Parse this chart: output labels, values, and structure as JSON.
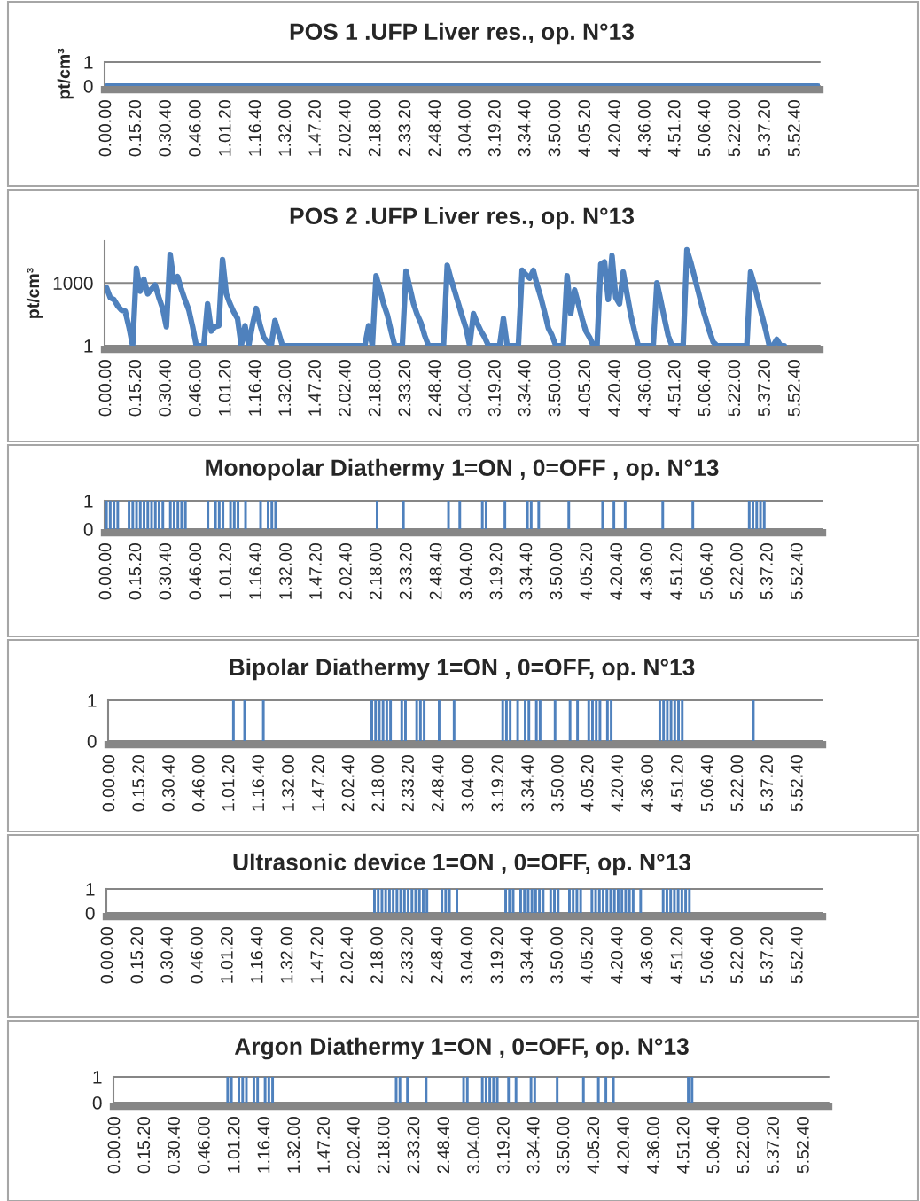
{
  "chart_data": [
    {
      "type": "line",
      "title": "POS 1 .UFP Liver res., op. N°13",
      "ylabel": "pt/cm³",
      "ylim": [
        0,
        1
      ],
      "yticks": [
        0,
        1
      ],
      "grid": "y",
      "categories": [
        "0.00.00",
        null,
        null,
        null,
        null,
        null,
        null,
        null,
        "0.15.20",
        null,
        null,
        null,
        null,
        null,
        null,
        null,
        "0.30.40",
        null,
        null,
        null,
        null,
        null,
        null,
        null,
        "0.46.00",
        null,
        null,
        null,
        null,
        null,
        null,
        null,
        "1.01.20",
        null,
        null,
        null,
        null,
        null,
        null,
        null,
        "1.16.40",
        null,
        null,
        null,
        null,
        null,
        null,
        null,
        "1.32.00",
        null,
        null,
        null,
        null,
        null,
        null,
        null,
        "1.47.20",
        null,
        null,
        null,
        null,
        null,
        null,
        null,
        "2.02.40",
        null,
        null,
        null,
        null,
        null,
        null,
        null,
        "2.18.00",
        null,
        null,
        null,
        null,
        null,
        null,
        null,
        "2.33.20",
        null,
        null,
        null,
        null,
        null,
        null,
        null,
        "2.48.40",
        null,
        null,
        null,
        null,
        null,
        null,
        null,
        "3.04.00",
        null,
        null,
        null,
        null,
        null,
        null,
        null,
        "3.19.20",
        null,
        null,
        null,
        null,
        null,
        null,
        null,
        "3.34.40",
        null,
        null,
        null,
        null,
        null,
        null,
        null,
        "3.50.00",
        null,
        null,
        null,
        null,
        null,
        null,
        null,
        "4.05.20",
        null,
        null,
        null,
        null,
        null,
        null,
        null,
        "4.20.40",
        null,
        null,
        null,
        null,
        null,
        null,
        null,
        "4.36.00",
        null,
        null,
        null,
        null,
        null,
        null,
        null,
        "4.51.20",
        null,
        null,
        null,
        null,
        null,
        null,
        null,
        "5.06.40",
        null,
        null,
        null,
        null,
        null,
        null,
        null,
        "5.22.00",
        null,
        null,
        null,
        null,
        null,
        null,
        null,
        "5.37.20",
        null,
        null,
        null,
        null,
        null,
        null,
        null,
        "5.52.40",
        null,
        null,
        null,
        null,
        null,
        null
      ],
      "series": [
        {
          "color": "#4f81bd",
          "values": [
            0,
            0,
            0,
            0,
            0,
            0,
            0,
            0,
            0,
            0,
            0,
            0,
            0,
            0,
            0,
            0,
            0,
            0,
            0,
            0,
            0,
            0,
            0,
            0,
            0,
            0,
            0,
            0,
            0,
            0,
            0,
            0,
            0,
            0,
            0,
            0,
            0,
            0,
            0,
            0,
            0,
            0,
            0,
            0,
            0,
            0,
            0,
            0,
            0,
            0,
            0,
            0,
            0,
            0,
            0,
            0,
            0,
            0,
            0,
            0,
            0,
            0,
            0,
            0,
            0,
            0,
            0,
            0,
            0,
            0,
            0,
            0,
            0,
            0,
            0,
            0,
            0,
            0,
            0,
            0,
            0,
            0,
            0,
            0,
            0,
            0,
            0,
            0,
            0,
            0,
            0,
            0,
            0,
            0,
            0,
            0,
            0,
            0,
            0,
            0,
            0,
            0,
            0,
            0,
            0,
            0,
            0,
            0,
            0,
            0,
            0,
            0,
            0,
            0,
            0,
            0,
            0,
            0,
            0,
            0,
            0,
            0,
            0,
            0,
            0,
            0,
            0,
            0,
            0,
            0,
            0,
            0,
            0,
            0,
            0,
            0,
            0,
            0,
            0,
            0,
            0,
            0,
            0,
            0,
            0,
            0,
            0,
            0,
            0,
            0,
            0,
            0,
            0,
            0,
            0,
            0,
            0,
            0,
            0,
            0,
            0,
            0,
            0,
            0,
            0,
            0,
            0,
            0,
            0,
            0,
            0,
            0,
            0,
            0,
            0,
            0,
            0,
            0,
            0,
            0,
            0,
            0,
            0,
            0,
            0,
            0,
            0,
            0,
            0,
            0,
            0
          ]
        }
      ]
    },
    {
      "type": "line",
      "title": "POS 2 .UFP Liver res., op. N°13",
      "ylabel": "pt/cm³",
      "log": true,
      "ylim": [
        1,
        100000
      ],
      "yticks": [
        1,
        1000
      ],
      "grid": "y",
      "categories": [
        "0.00.00",
        null,
        null,
        null,
        null,
        null,
        null,
        null,
        "0.15.20",
        null,
        null,
        null,
        null,
        null,
        null,
        null,
        "0.30.40",
        null,
        null,
        null,
        null,
        null,
        null,
        null,
        "0.46.00",
        null,
        null,
        null,
        null,
        null,
        null,
        null,
        "1.01.20",
        null,
        null,
        null,
        null,
        null,
        null,
        null,
        "1.16.40",
        null,
        null,
        null,
        null,
        null,
        null,
        null,
        "1.32.00",
        null,
        null,
        null,
        null,
        null,
        null,
        null,
        "1.47.20",
        null,
        null,
        null,
        null,
        null,
        null,
        null,
        "2.02.40",
        null,
        null,
        null,
        null,
        null,
        null,
        null,
        "2.18.00",
        null,
        null,
        null,
        null,
        null,
        null,
        null,
        "2.33.20",
        null,
        null,
        null,
        null,
        null,
        null,
        null,
        "2.48.40",
        null,
        null,
        null,
        null,
        null,
        null,
        null,
        "3.04.00",
        null,
        null,
        null,
        null,
        null,
        null,
        null,
        "3.19.20",
        null,
        null,
        null,
        null,
        null,
        null,
        null,
        "3.34.40",
        null,
        null,
        null,
        null,
        null,
        null,
        null,
        "3.50.00",
        null,
        null,
        null,
        null,
        null,
        null,
        null,
        "4.05.20",
        null,
        null,
        null,
        null,
        null,
        null,
        null,
        "4.20.40",
        null,
        null,
        null,
        null,
        null,
        null,
        null,
        "4.36.00",
        null,
        null,
        null,
        null,
        null,
        null,
        null,
        "4.51.20",
        null,
        null,
        null,
        null,
        null,
        null,
        null,
        "5.06.40",
        null,
        null,
        null,
        null,
        null,
        null,
        null,
        "5.22.00",
        null,
        null,
        null,
        null,
        null,
        null,
        null,
        "5.37.20",
        null,
        null,
        null,
        null,
        null,
        null,
        null,
        "5.52.40",
        null,
        null,
        null,
        null,
        null,
        null
      ],
      "series": [
        {
          "color": "#4f81bd",
          "values": [
            600,
            200,
            160,
            80,
            50,
            45,
            8,
            1,
            5000,
            400,
            1500,
            300,
            500,
            800,
            200,
            60,
            8,
            23000,
            1200,
            2000,
            500,
            150,
            50,
            8,
            1,
            1,
            1,
            100,
            5,
            8,
            9,
            13000,
            300,
            100,
            40,
            20,
            1,
            9,
            1,
            10,
            60,
            10,
            2.5,
            1.5,
            1,
            16,
            4,
            1,
            1,
            1,
            1,
            1,
            1,
            1,
            1,
            1,
            1,
            1,
            1,
            1,
            1,
            1,
            1,
            1,
            1,
            1,
            1,
            1,
            1,
            1,
            9,
            1,
            2200,
            500,
            100,
            30,
            5,
            1,
            1,
            1,
            3700,
            600,
            100,
            30,
            12,
            3,
            1,
            1,
            1,
            1,
            1,
            7000,
            1500,
            400,
            100,
            25,
            7,
            1,
            34,
            12,
            5,
            2.5,
            1,
            1,
            1,
            1,
            20,
            1,
            1,
            1,
            1,
            4000,
            2500,
            1700,
            4000,
            800,
            200,
            40,
            7,
            3,
            1,
            1,
            1,
            2200,
            34,
            460,
            100,
            20,
            5,
            2.5,
            1,
            1,
            8000,
            10000,
            160,
            20000,
            200,
            100,
            3300,
            300,
            30,
            5,
            1,
            1,
            1,
            1,
            1,
            1000,
            150,
            20,
            3,
            1,
            1,
            1,
            1,
            38000,
            10000,
            2000,
            400,
            80,
            20,
            5,
            1.5,
            1,
            1,
            1,
            1,
            1,
            1,
            1,
            1,
            1,
            3300,
            800,
            150,
            30,
            6,
            1,
            1,
            2,
            1,
            1,
            null,
            null,
            null,
            null,
            null,
            null,
            null,
            null,
            null
          ]
        }
      ]
    },
    {
      "type": "bar",
      "title": "Monopolar Diathermy 1=ON , 0=OFF , op. N°13",
      "ylim": [
        0,
        1
      ],
      "yticks": [
        0,
        1
      ],
      "grid": "y",
      "categories": [
        "0.00.00",
        null,
        null,
        null,
        null,
        null,
        null,
        null,
        "0.15.20",
        null,
        null,
        null,
        null,
        null,
        null,
        null,
        "0.30.40",
        null,
        null,
        null,
        null,
        null,
        null,
        null,
        "0.46.00",
        null,
        null,
        null,
        null,
        null,
        null,
        null,
        "1.01.20",
        null,
        null,
        null,
        null,
        null,
        null,
        null,
        "1.16.40",
        null,
        null,
        null,
        null,
        null,
        null,
        null,
        "1.32.00",
        null,
        null,
        null,
        null,
        null,
        null,
        null,
        "1.47.20",
        null,
        null,
        null,
        null,
        null,
        null,
        null,
        "2.02.40",
        null,
        null,
        null,
        null,
        null,
        null,
        null,
        "2.18.00",
        null,
        null,
        null,
        null,
        null,
        null,
        null,
        "2.33.20",
        null,
        null,
        null,
        null,
        null,
        null,
        null,
        "2.48.40",
        null,
        null,
        null,
        null,
        null,
        null,
        null,
        "3.04.00",
        null,
        null,
        null,
        null,
        null,
        null,
        null,
        "3.19.20",
        null,
        null,
        null,
        null,
        null,
        null,
        null,
        "3.34.40",
        null,
        null,
        null,
        null,
        null,
        null,
        null,
        "3.50.00",
        null,
        null,
        null,
        null,
        null,
        null,
        null,
        "4.05.20",
        null,
        null,
        null,
        null,
        null,
        null,
        null,
        "4.20.40",
        null,
        null,
        null,
        null,
        null,
        null,
        null,
        "4.36.00",
        null,
        null,
        null,
        null,
        null,
        null,
        null,
        "4.51.20",
        null,
        null,
        null,
        null,
        null,
        null,
        null,
        "5.06.40",
        null,
        null,
        null,
        null,
        null,
        null,
        null,
        "5.22.00",
        null,
        null,
        null,
        null,
        null,
        null,
        null,
        "5.37.20",
        null,
        null,
        null,
        null,
        null,
        null,
        null,
        "5.52.40",
        null,
        null,
        null,
        null,
        null,
        null
      ],
      "series": [
        {
          "color": "#4f81bd",
          "values": [
            1,
            1,
            1,
            1,
            0,
            0,
            1,
            1,
            1,
            1,
            1,
            1,
            1,
            1,
            1,
            1,
            0,
            1,
            1,
            1,
            1,
            1,
            0,
            0,
            0,
            0,
            0,
            1,
            0,
            1,
            1,
            1,
            0,
            1,
            1,
            1,
            0,
            1,
            0,
            0,
            0,
            1,
            0,
            1,
            1,
            1,
            0,
            0,
            0,
            0,
            0,
            0,
            0,
            0,
            0,
            0,
            0,
            0,
            0,
            0,
            0,
            0,
            0,
            0,
            0,
            0,
            0,
            0,
            0,
            0,
            0,
            0,
            1,
            0,
            0,
            0,
            0,
            0,
            0,
            1,
            0,
            0,
            0,
            0,
            0,
            0,
            0,
            0,
            0,
            0,
            0,
            1,
            0,
            0,
            1,
            0,
            0,
            0,
            0,
            0,
            1,
            1,
            0,
            0,
            0,
            0,
            1,
            0,
            0,
            0,
            0,
            0,
            1,
            1,
            0,
            1,
            0,
            0,
            0,
            0,
            0,
            0,
            0,
            1,
            0,
            0,
            0,
            0,
            0,
            0,
            0,
            0,
            1,
            0,
            0,
            1,
            0,
            0,
            1,
            0,
            0,
            0,
            0,
            0,
            0,
            0,
            0,
            0,
            1,
            0,
            0,
            0,
            0,
            0,
            0,
            0,
            1,
            0,
            0,
            0,
            0,
            0,
            0,
            0,
            0,
            0,
            0,
            0,
            0,
            0,
            0,
            1,
            1,
            1,
            1,
            1,
            0,
            0,
            0,
            0,
            0,
            0,
            0,
            0,
            0,
            0,
            0,
            0,
            0,
            0,
            0
          ]
        }
      ]
    },
    {
      "type": "bar",
      "title": "Bipolar Diathermy 1=ON , 0=OFF, op. N°13",
      "ylim": [
        0,
        1
      ],
      "yticks": [
        0,
        1
      ],
      "grid": "y",
      "categories": [
        "0.00.00",
        null,
        null,
        null,
        null,
        null,
        null,
        null,
        "0.15.20",
        null,
        null,
        null,
        null,
        null,
        null,
        null,
        "0.30.40",
        null,
        null,
        null,
        null,
        null,
        null,
        null,
        "0.46.00",
        null,
        null,
        null,
        null,
        null,
        null,
        null,
        "1.01.20",
        null,
        null,
        null,
        null,
        null,
        null,
        null,
        "1.16.40",
        null,
        null,
        null,
        null,
        null,
        null,
        null,
        "1.32.00",
        null,
        null,
        null,
        null,
        null,
        null,
        null,
        "1.47.20",
        null,
        null,
        null,
        null,
        null,
        null,
        null,
        "2.02.40",
        null,
        null,
        null,
        null,
        null,
        null,
        null,
        "2.18.00",
        null,
        null,
        null,
        null,
        null,
        null,
        null,
        "2.33.20",
        null,
        null,
        null,
        null,
        null,
        null,
        null,
        "2.48.40",
        null,
        null,
        null,
        null,
        null,
        null,
        null,
        "3.04.00",
        null,
        null,
        null,
        null,
        null,
        null,
        null,
        "3.19.20",
        null,
        null,
        null,
        null,
        null,
        null,
        null,
        "3.34.40",
        null,
        null,
        null,
        null,
        null,
        null,
        null,
        "3.50.00",
        null,
        null,
        null,
        null,
        null,
        null,
        null,
        "4.05.20",
        null,
        null,
        null,
        null,
        null,
        null,
        null,
        "4.20.40",
        null,
        null,
        null,
        null,
        null,
        null,
        null,
        "4.36.00",
        null,
        null,
        null,
        null,
        null,
        null,
        null,
        "4.51.20",
        null,
        null,
        null,
        null,
        null,
        null,
        null,
        "5.06.40",
        null,
        null,
        null,
        null,
        null,
        null,
        null,
        "5.22.00",
        null,
        null,
        null,
        null,
        null,
        null,
        null,
        "5.37.20",
        null,
        null,
        null,
        null,
        null,
        null,
        null,
        "5.52.40",
        null,
        null,
        null,
        null,
        null,
        null
      ],
      "series": [
        {
          "color": "#4f81bd",
          "values": [
            0,
            0,
            0,
            0,
            0,
            0,
            0,
            0,
            0,
            0,
            0,
            0,
            0,
            0,
            0,
            0,
            0,
            0,
            0,
            0,
            0,
            0,
            0,
            0,
            0,
            0,
            0,
            0,
            0,
            0,
            0,
            0,
            0,
            1,
            0,
            0,
            1,
            0,
            0,
            0,
            0,
            1,
            0,
            0,
            0,
            0,
            0,
            0,
            0,
            0,
            0,
            0,
            0,
            0,
            0,
            0,
            0,
            0,
            0,
            0,
            0,
            0,
            0,
            0,
            0,
            0,
            0,
            0,
            0,
            0,
            1,
            1,
            1,
            1,
            1,
            1,
            0,
            0,
            1,
            1,
            0,
            0,
            1,
            1,
            1,
            0,
            0,
            0,
            1,
            0,
            0,
            0,
            1,
            0,
            0,
            0,
            0,
            0,
            0,
            0,
            0,
            0,
            0,
            0,
            0,
            1,
            1,
            1,
            0,
            1,
            0,
            1,
            1,
            0,
            1,
            1,
            0,
            0,
            0,
            1,
            0,
            0,
            0,
            1,
            0,
            1,
            0,
            0,
            1,
            1,
            1,
            1,
            0,
            1,
            1,
            0,
            0,
            0,
            0,
            0,
            0,
            0,
            0,
            0,
            0,
            0,
            0,
            1,
            1,
            1,
            1,
            1,
            1,
            1,
            0,
            0,
            0,
            0,
            0,
            0,
            0,
            0,
            0,
            0,
            0,
            0,
            0,
            0,
            0,
            0,
            0,
            0,
            1,
            0,
            0,
            0,
            0,
            0,
            0,
            0,
            0,
            0,
            0,
            0,
            0,
            0,
            0,
            0,
            0,
            0,
            0
          ]
        }
      ]
    },
    {
      "type": "bar",
      "title": "Ultrasonic device 1=ON , 0=OFF, op. N°13",
      "ylim": [
        0,
        1
      ],
      "yticks": [
        0,
        1
      ],
      "grid": "y",
      "categories": [
        "0.00.00",
        null,
        null,
        null,
        null,
        null,
        null,
        null,
        "0.15.20",
        null,
        null,
        null,
        null,
        null,
        null,
        null,
        "0.30.40",
        null,
        null,
        null,
        null,
        null,
        null,
        null,
        "0.46.00",
        null,
        null,
        null,
        null,
        null,
        null,
        null,
        "1.01.20",
        null,
        null,
        null,
        null,
        null,
        null,
        null,
        "1.16.40",
        null,
        null,
        null,
        null,
        null,
        null,
        null,
        "1.32.00",
        null,
        null,
        null,
        null,
        null,
        null,
        null,
        "1.47.20",
        null,
        null,
        null,
        null,
        null,
        null,
        null,
        "2.02.40",
        null,
        null,
        null,
        null,
        null,
        null,
        null,
        "2.18.00",
        null,
        null,
        null,
        null,
        null,
        null,
        null,
        "2.33.20",
        null,
        null,
        null,
        null,
        null,
        null,
        null,
        "2.48.40",
        null,
        null,
        null,
        null,
        null,
        null,
        null,
        "3.04.00",
        null,
        null,
        null,
        null,
        null,
        null,
        null,
        "3.19.20",
        null,
        null,
        null,
        null,
        null,
        null,
        null,
        "3.34.40",
        null,
        null,
        null,
        null,
        null,
        null,
        null,
        "3.50.00",
        null,
        null,
        null,
        null,
        null,
        null,
        null,
        "4.05.20",
        null,
        null,
        null,
        null,
        null,
        null,
        null,
        "4.20.40",
        null,
        null,
        null,
        null,
        null,
        null,
        null,
        "4.36.00",
        null,
        null,
        null,
        null,
        null,
        null,
        null,
        "4.51.20",
        null,
        null,
        null,
        null,
        null,
        null,
        null,
        "5.06.40",
        null,
        null,
        null,
        null,
        null,
        null,
        null,
        "5.22.00",
        null,
        null,
        null,
        null,
        null,
        null,
        null,
        "5.37.20",
        null,
        null,
        null,
        null,
        null,
        null,
        null,
        "5.52.40",
        null,
        null,
        null,
        null,
        null,
        null
      ],
      "series": [
        {
          "color": "#4f81bd",
          "values": [
            0,
            0,
            0,
            0,
            0,
            0,
            0,
            0,
            0,
            0,
            0,
            0,
            0,
            0,
            0,
            0,
            0,
            0,
            0,
            0,
            0,
            0,
            0,
            0,
            0,
            0,
            0,
            0,
            0,
            0,
            0,
            0,
            0,
            0,
            0,
            0,
            0,
            0,
            0,
            0,
            0,
            0,
            0,
            0,
            0,
            0,
            0,
            0,
            0,
            0,
            0,
            0,
            0,
            0,
            0,
            0,
            0,
            0,
            0,
            0,
            0,
            0,
            0,
            0,
            0,
            0,
            0,
            0,
            0,
            0,
            0,
            1,
            1,
            1,
            1,
            1,
            1,
            1,
            1,
            1,
            1,
            1,
            1,
            1,
            1,
            1,
            0,
            0,
            0,
            1,
            1,
            1,
            0,
            1,
            0,
            0,
            0,
            0,
            0,
            0,
            0,
            0,
            0,
            0,
            0,
            0,
            1,
            1,
            1,
            0,
            1,
            1,
            1,
            1,
            1,
            1,
            1,
            0,
            1,
            1,
            1,
            0,
            0,
            1,
            1,
            1,
            1,
            0,
            0,
            1,
            1,
            1,
            1,
            1,
            1,
            1,
            1,
            1,
            1,
            1,
            1,
            0,
            1,
            0,
            0,
            0,
            0,
            0,
            1,
            1,
            1,
            1,
            1,
            1,
            1,
            1,
            0,
            0,
            0,
            0,
            0,
            0,
            0,
            0,
            0,
            0,
            0,
            0,
            0,
            0,
            0,
            0,
            0,
            0,
            0,
            0,
            0,
            0,
            0,
            0,
            0,
            0,
            0,
            0,
            0,
            0,
            0,
            0,
            0,
            0,
            0
          ]
        }
      ]
    },
    {
      "type": "bar",
      "title": "Argon Diathermy 1=ON , 0=OFF, op. N°13",
      "ylim": [
        0,
        1
      ],
      "yticks": [
        0,
        1
      ],
      "grid": "y",
      "categories": [
        "0.00.00",
        null,
        null,
        null,
        null,
        null,
        null,
        null,
        "0.15.20",
        null,
        null,
        null,
        null,
        null,
        null,
        null,
        "0.30.40",
        null,
        null,
        null,
        null,
        null,
        null,
        null,
        "0.46.00",
        null,
        null,
        null,
        null,
        null,
        null,
        null,
        "1.01.20",
        null,
        null,
        null,
        null,
        null,
        null,
        null,
        "1.16.40",
        null,
        null,
        null,
        null,
        null,
        null,
        null,
        "1.32.00",
        null,
        null,
        null,
        null,
        null,
        null,
        null,
        "1.47.20",
        null,
        null,
        null,
        null,
        null,
        null,
        null,
        "2.02.40",
        null,
        null,
        null,
        null,
        null,
        null,
        null,
        "2.18.00",
        null,
        null,
        null,
        null,
        null,
        null,
        null,
        "2.33.20",
        null,
        null,
        null,
        null,
        null,
        null,
        null,
        "2.48.40",
        null,
        null,
        null,
        null,
        null,
        null,
        null,
        "3.04.00",
        null,
        null,
        null,
        null,
        null,
        null,
        null,
        "3.19.20",
        null,
        null,
        null,
        null,
        null,
        null,
        null,
        "3.34.40",
        null,
        null,
        null,
        null,
        null,
        null,
        null,
        "3.50.00",
        null,
        null,
        null,
        null,
        null,
        null,
        null,
        "4.05.20",
        null,
        null,
        null,
        null,
        null,
        null,
        null,
        "4.20.40",
        null,
        null,
        null,
        null,
        null,
        null,
        null,
        "4.36.00",
        null,
        null,
        null,
        null,
        null,
        null,
        null,
        "4.51.20",
        null,
        null,
        null,
        null,
        null,
        null,
        null,
        "5.06.40",
        null,
        null,
        null,
        null,
        null,
        null,
        null,
        "5.22.00",
        null,
        null,
        null,
        null,
        null,
        null,
        null,
        "5.37.20",
        null,
        null,
        null,
        null,
        null,
        null,
        null,
        "5.52.40",
        null,
        null,
        null,
        null,
        null,
        null
      ],
      "series": [
        {
          "color": "#4f81bd",
          "values": [
            0,
            0,
            0,
            0,
            0,
            0,
            0,
            0,
            0,
            0,
            0,
            0,
            0,
            0,
            0,
            0,
            0,
            0,
            0,
            0,
            0,
            0,
            0,
            0,
            0,
            0,
            0,
            0,
            0,
            0,
            1,
            1,
            0,
            1,
            1,
            1,
            0,
            1,
            1,
            0,
            1,
            1,
            1,
            0,
            0,
            0,
            0,
            0,
            0,
            0,
            0,
            0,
            0,
            0,
            0,
            0,
            0,
            0,
            0,
            0,
            0,
            0,
            0,
            0,
            0,
            0,
            0,
            0,
            0,
            0,
            0,
            0,
            0,
            0,
            0,
            1,
            1,
            0,
            1,
            0,
            0,
            0,
            0,
            1,
            0,
            0,
            0,
            0,
            0,
            0,
            0,
            0,
            0,
            1,
            1,
            0,
            0,
            0,
            1,
            1,
            1,
            1,
            1,
            0,
            0,
            1,
            0,
            1,
            0,
            0,
            0,
            1,
            1,
            0,
            0,
            0,
            0,
            0,
            1,
            0,
            0,
            0,
            0,
            0,
            0,
            1,
            0,
            0,
            0,
            1,
            0,
            1,
            0,
            1,
            0,
            0,
            0,
            0,
            0,
            0,
            0,
            0,
            0,
            0,
            0,
            0,
            0,
            0,
            0,
            0,
            0,
            0,
            0,
            1,
            1,
            0,
            0,
            0,
            0,
            0,
            0,
            0,
            0,
            0,
            0,
            0,
            0,
            0,
            0,
            0,
            0,
            0,
            0,
            0,
            0,
            0,
            0,
            0,
            0,
            0,
            0,
            0,
            0,
            0,
            0,
            0,
            0,
            0,
            0,
            0,
            0
          ]
        }
      ]
    }
  ]
}
